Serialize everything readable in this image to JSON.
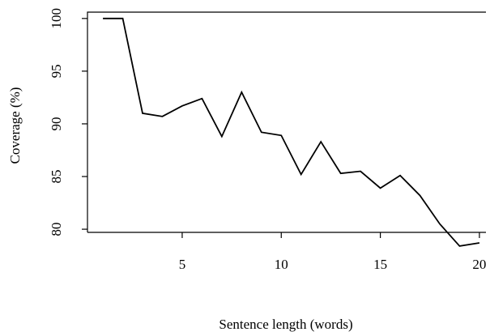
{
  "chart_data": {
    "type": "line",
    "x_label": "Sentence length (words)",
    "y_label": "Coverage (%)",
    "x": [
      1,
      2,
      3,
      4,
      5,
      6,
      7,
      8,
      9,
      10,
      11,
      12,
      13,
      14,
      15,
      16,
      17,
      18,
      19,
      20
    ],
    "series": [
      {
        "color": "#000000",
        "values": [
          100,
          100,
          91.0,
          90.7,
          91.7,
          92.4,
          88.8,
          93.0,
          89.2,
          88.9,
          85.2,
          88.3,
          85.3,
          85.5,
          83.9,
          85.1,
          83.2,
          80.5,
          78.4,
          78.7
        ]
      }
    ],
    "xlim": [
      0.22,
      20.33
    ],
    "xticks": [
      5,
      10,
      15,
      20
    ],
    "ylim": [
      79.7,
      100.6
    ],
    "yticks": [
      80,
      85,
      90,
      95,
      100
    ]
  }
}
